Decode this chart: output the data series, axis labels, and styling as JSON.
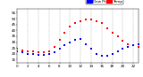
{
  "background_color": "#ffffff",
  "grid_color": "#888888",
  "temp_color": "#ff0000",
  "dew_color": "#0000ff",
  "black_color": "#000000",
  "ylim": [
    12,
    58
  ],
  "xlim": [
    0,
    23
  ],
  "yticks": [
    15,
    20,
    25,
    30,
    35,
    40,
    45,
    50,
    55
  ],
  "xtick_vals": [
    0,
    2,
    4,
    6,
    8,
    10,
    12,
    14,
    16,
    18,
    20,
    22
  ],
  "xtick_labels": [
    "0",
    "2",
    "4",
    "6",
    "8",
    "10",
    "12",
    "14",
    "16",
    "18",
    "20",
    "22"
  ],
  "temp_x": [
    0,
    1,
    2,
    3,
    4,
    5,
    6,
    7,
    8,
    9,
    10,
    11,
    12,
    13,
    14,
    15,
    16,
    17,
    18,
    19,
    20,
    21,
    22,
    23
  ],
  "temp_y": [
    24,
    23,
    22,
    22,
    21,
    21,
    22,
    26,
    32,
    38,
    43,
    46,
    48,
    49,
    49,
    48,
    46,
    42,
    38,
    35,
    31,
    28,
    27,
    26
  ],
  "dew_x": [
    0,
    1,
    2,
    3,
    4,
    5,
    6,
    7,
    8,
    9,
    10,
    11,
    12,
    13,
    14,
    15,
    16,
    17,
    18,
    19,
    20,
    21,
    22,
    23
  ],
  "dew_y": [
    22,
    21,
    20,
    20,
    19,
    19,
    20,
    21,
    24,
    27,
    30,
    32,
    33,
    28,
    24,
    20,
    18,
    18,
    20,
    22,
    24,
    26,
    27,
    28
  ],
  "legend_temp_label": "Temp",
  "legend_dew_label": "Dew Pt",
  "marker_size": 1.2,
  "tick_fontsize": 3.0,
  "legend_fontsize": 3.0,
  "vgrid_positions": [
    2,
    4,
    6,
    8,
    10,
    12,
    14,
    16,
    18,
    20,
    22
  ],
  "figwidth": 1.6,
  "figheight": 0.87,
  "dpi": 100
}
